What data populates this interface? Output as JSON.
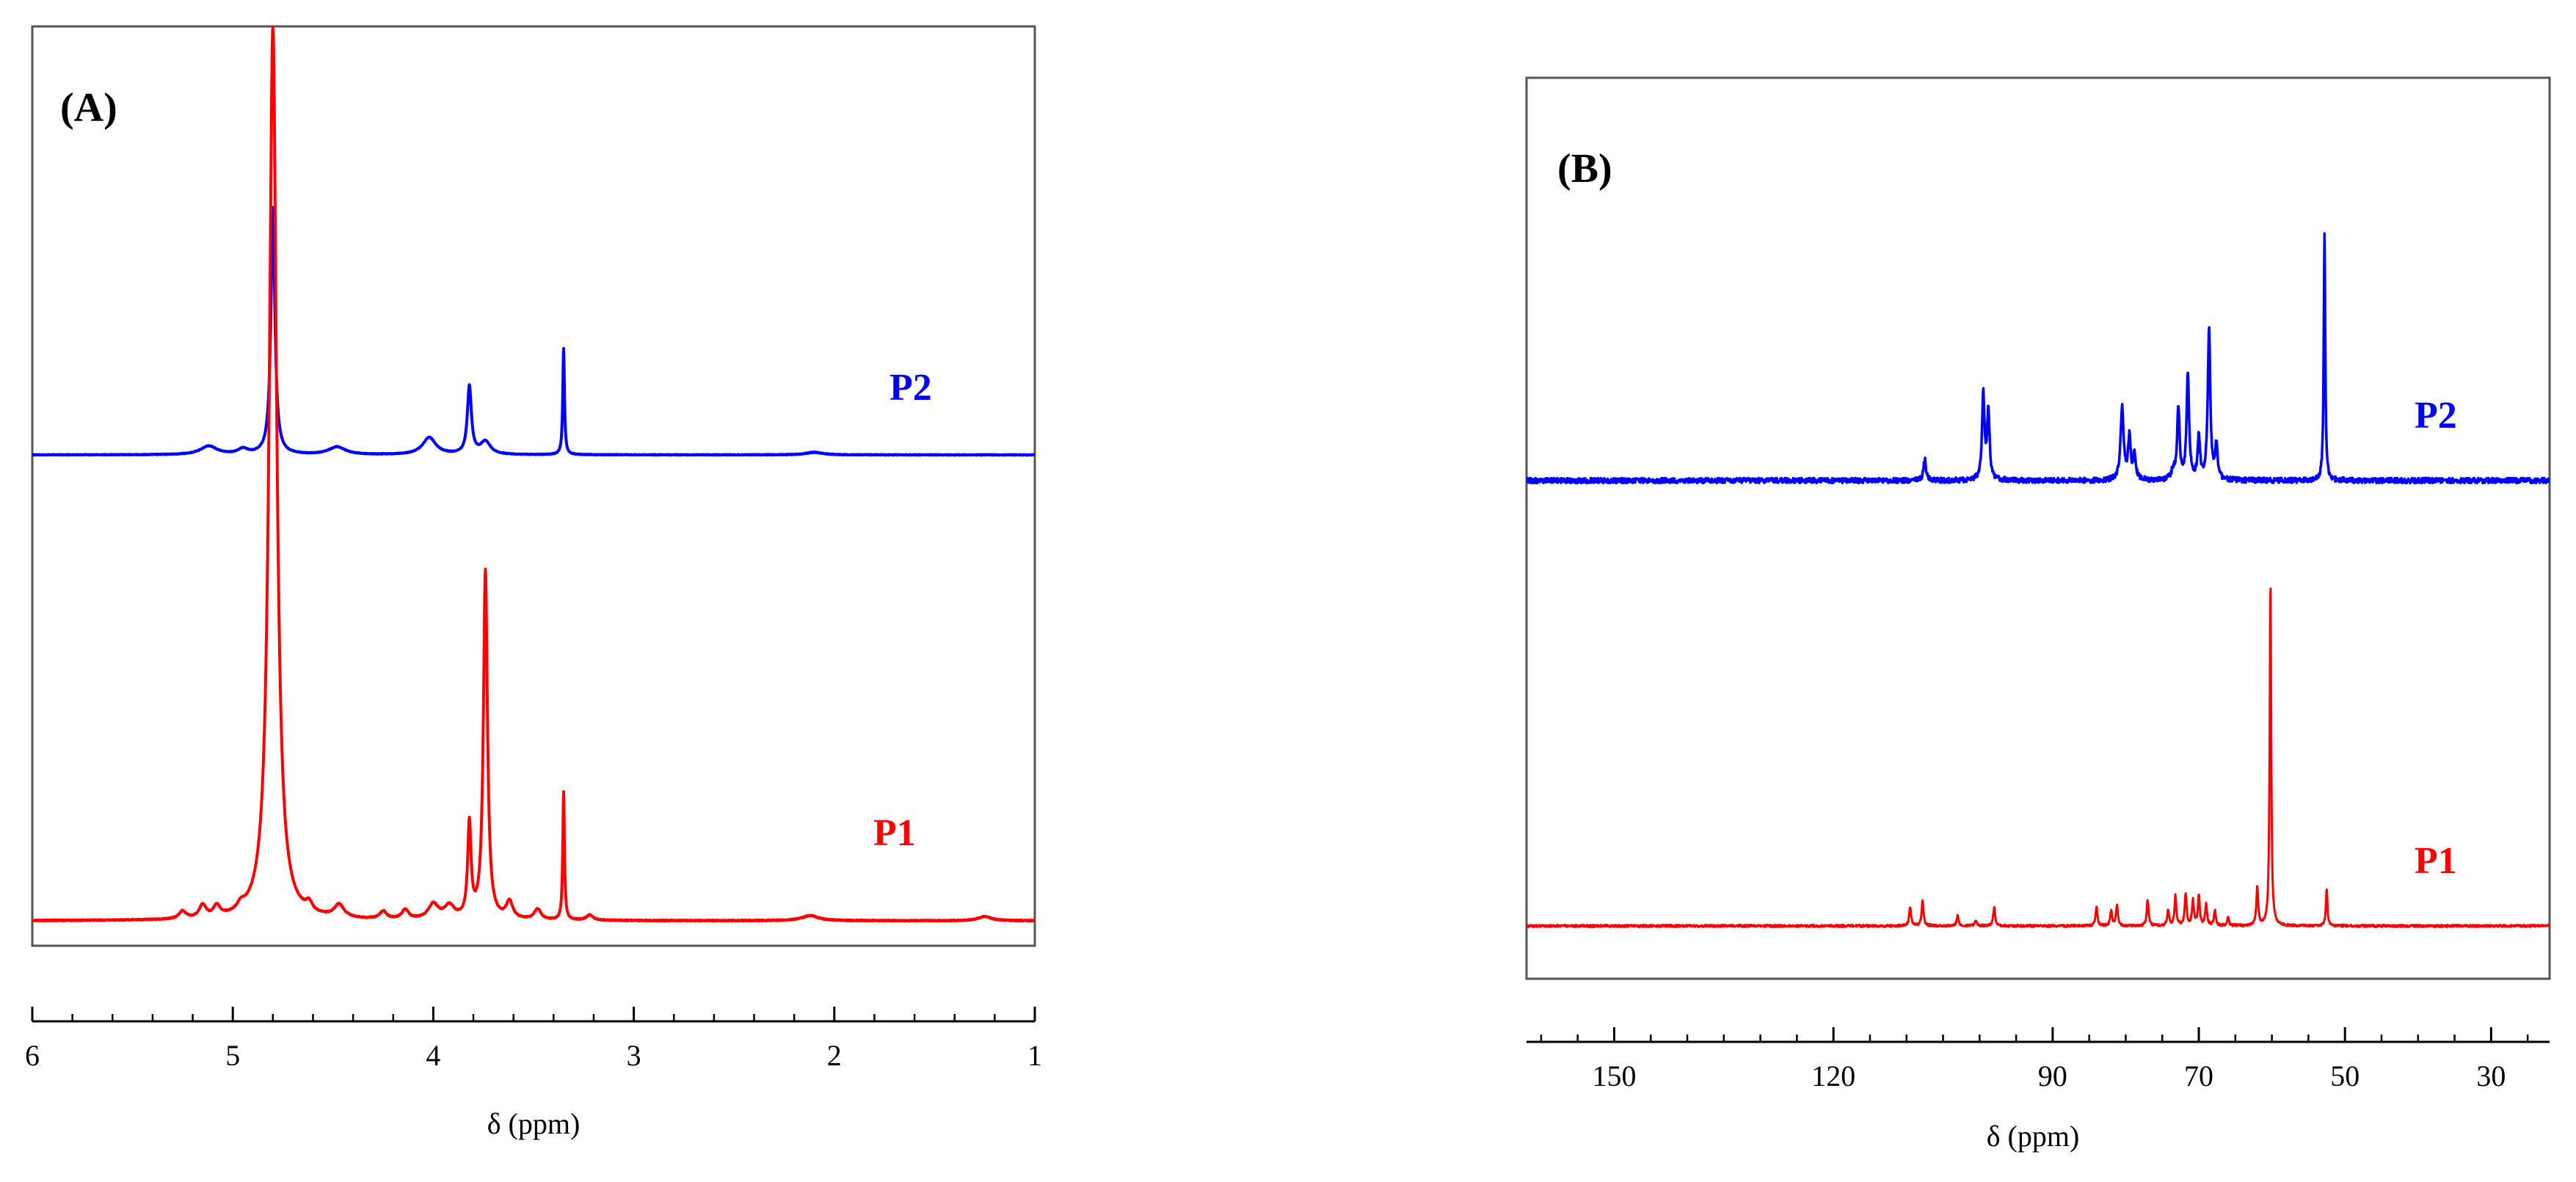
{
  "chart_data": [
    {
      "type": "line",
      "panel_label": "(A)",
      "xlabel": "δ (ppm)",
      "ylabel": "",
      "xlim": [
        6,
        1
      ],
      "x_reversed": true,
      "x_ticks": [
        6,
        5,
        4,
        3,
        2,
        1
      ],
      "x_tick_labels": [
        "6",
        "5",
        "4",
        "3",
        "2",
        "1"
      ],
      "grid": false,
      "legend": "labels placed next to each trace on the right",
      "series": [
        {
          "name": "P2",
          "color": "#0000ff",
          "baseline": 0.0,
          "peaks": [
            {
              "x": 5.12,
              "h": 0.02,
              "w": 0.05
            },
            {
              "x": 4.95,
              "h": 0.012,
              "w": 0.03
            },
            {
              "x": 4.8,
              "h": 0.58,
              "w": 0.012
            },
            {
              "x": 4.48,
              "h": 0.018,
              "w": 0.05
            },
            {
              "x": 4.02,
              "h": 0.04,
              "w": 0.04
            },
            {
              "x": 3.82,
              "h": 0.16,
              "w": 0.012
            },
            {
              "x": 3.74,
              "h": 0.03,
              "w": 0.03
            },
            {
              "x": 3.35,
              "h": 0.25,
              "w": 0.005
            },
            {
              "x": 2.1,
              "h": 0.006,
              "w": 0.05
            }
          ]
        },
        {
          "name": "P1",
          "color": "#ff0000",
          "baseline": 0.0,
          "peaks": [
            {
              "x": 5.25,
              "h": 0.018,
              "w": 0.02
            },
            {
              "x": 5.15,
              "h": 0.03,
              "w": 0.02
            },
            {
              "x": 5.08,
              "h": 0.025,
              "w": 0.02
            },
            {
              "x": 4.96,
              "h": 0.015,
              "w": 0.02
            },
            {
              "x": 4.8,
              "h": 2.1,
              "w": 0.022
            },
            {
              "x": 4.62,
              "h": 0.02,
              "w": 0.02
            },
            {
              "x": 4.47,
              "h": 0.03,
              "w": 0.03
            },
            {
              "x": 4.25,
              "h": 0.018,
              "w": 0.02
            },
            {
              "x": 4.14,
              "h": 0.022,
              "w": 0.02
            },
            {
              "x": 4.0,
              "h": 0.035,
              "w": 0.03
            },
            {
              "x": 3.92,
              "h": 0.03,
              "w": 0.03
            },
            {
              "x": 3.82,
              "h": 0.22,
              "w": 0.01
            },
            {
              "x": 3.74,
              "h": 0.82,
              "w": 0.012
            },
            {
              "x": 3.62,
              "h": 0.04,
              "w": 0.02
            },
            {
              "x": 3.48,
              "h": 0.025,
              "w": 0.02
            },
            {
              "x": 3.35,
              "h": 0.3,
              "w": 0.005
            },
            {
              "x": 3.22,
              "h": 0.012,
              "w": 0.02
            },
            {
              "x": 2.12,
              "h": 0.012,
              "w": 0.05
            },
            {
              "x": 1.25,
              "h": 0.01,
              "w": 0.04
            }
          ]
        }
      ]
    },
    {
      "type": "line",
      "panel_label": "(B)",
      "xlabel": "δ (ppm)",
      "ylabel": "",
      "xlim": [
        162,
        22
      ],
      "x_reversed": true,
      "x_ticks": [
        150,
        120,
        90,
        70,
        50,
        30
      ],
      "x_tick_labels": [
        "150",
        "120",
        "90",
        "70",
        "50",
        "30"
      ],
      "grid": false,
      "legend": "labels placed next to each trace on the right",
      "series": [
        {
          "name": "P2",
          "color": "#0000ff",
          "baseline": 0.0,
          "peaks": [
            {
              "x": 107.5,
              "h": 0.05,
              "w": 0.2
            },
            {
              "x": 99.5,
              "h": 0.2,
              "w": 0.2
            },
            {
              "x": 98.8,
              "h": 0.16,
              "w": 0.2
            },
            {
              "x": 80.5,
              "h": 0.17,
              "w": 0.25
            },
            {
              "x": 79.5,
              "h": 0.1,
              "w": 0.2
            },
            {
              "x": 78.8,
              "h": 0.06,
              "w": 0.2
            },
            {
              "x": 73.5,
              "h": 0.02,
              "w": 0.3
            },
            {
              "x": 72.8,
              "h": 0.17,
              "w": 0.2
            },
            {
              "x": 71.5,
              "h": 0.25,
              "w": 0.2
            },
            {
              "x": 70.0,
              "h": 0.1,
              "w": 0.2
            },
            {
              "x": 68.6,
              "h": 0.36,
              "w": 0.2
            },
            {
              "x": 67.6,
              "h": 0.08,
              "w": 0.2
            },
            {
              "x": 52.8,
              "h": 0.58,
              "w": 0.12
            }
          ]
        },
        {
          "name": "P1",
          "color": "#ff0000",
          "baseline": 0.0,
          "peaks": [
            {
              "x": 109.5,
              "h": 0.045,
              "w": 0.15
            },
            {
              "x": 107.8,
              "h": 0.06,
              "w": 0.15
            },
            {
              "x": 103.0,
              "h": 0.025,
              "w": 0.15
            },
            {
              "x": 100.5,
              "h": 0.012,
              "w": 0.2
            },
            {
              "x": 98.0,
              "h": 0.045,
              "w": 0.15
            },
            {
              "x": 84.0,
              "h": 0.045,
              "w": 0.15
            },
            {
              "x": 82.0,
              "h": 0.035,
              "w": 0.15
            },
            {
              "x": 81.2,
              "h": 0.048,
              "w": 0.15
            },
            {
              "x": 77.0,
              "h": 0.06,
              "w": 0.15
            },
            {
              "x": 74.2,
              "h": 0.035,
              "w": 0.15
            },
            {
              "x": 73.2,
              "h": 0.07,
              "w": 0.15
            },
            {
              "x": 71.8,
              "h": 0.075,
              "w": 0.15
            },
            {
              "x": 70.8,
              "h": 0.06,
              "w": 0.15
            },
            {
              "x": 70.0,
              "h": 0.07,
              "w": 0.15
            },
            {
              "x": 69.0,
              "h": 0.05,
              "w": 0.15
            },
            {
              "x": 67.8,
              "h": 0.035,
              "w": 0.15
            },
            {
              "x": 66.0,
              "h": 0.02,
              "w": 0.15
            },
            {
              "x": 62.0,
              "h": 0.09,
              "w": 0.15
            },
            {
              "x": 60.2,
              "h": 0.82,
              "w": 0.12
            },
            {
              "x": 52.5,
              "h": 0.09,
              "w": 0.12
            }
          ]
        }
      ]
    }
  ]
}
